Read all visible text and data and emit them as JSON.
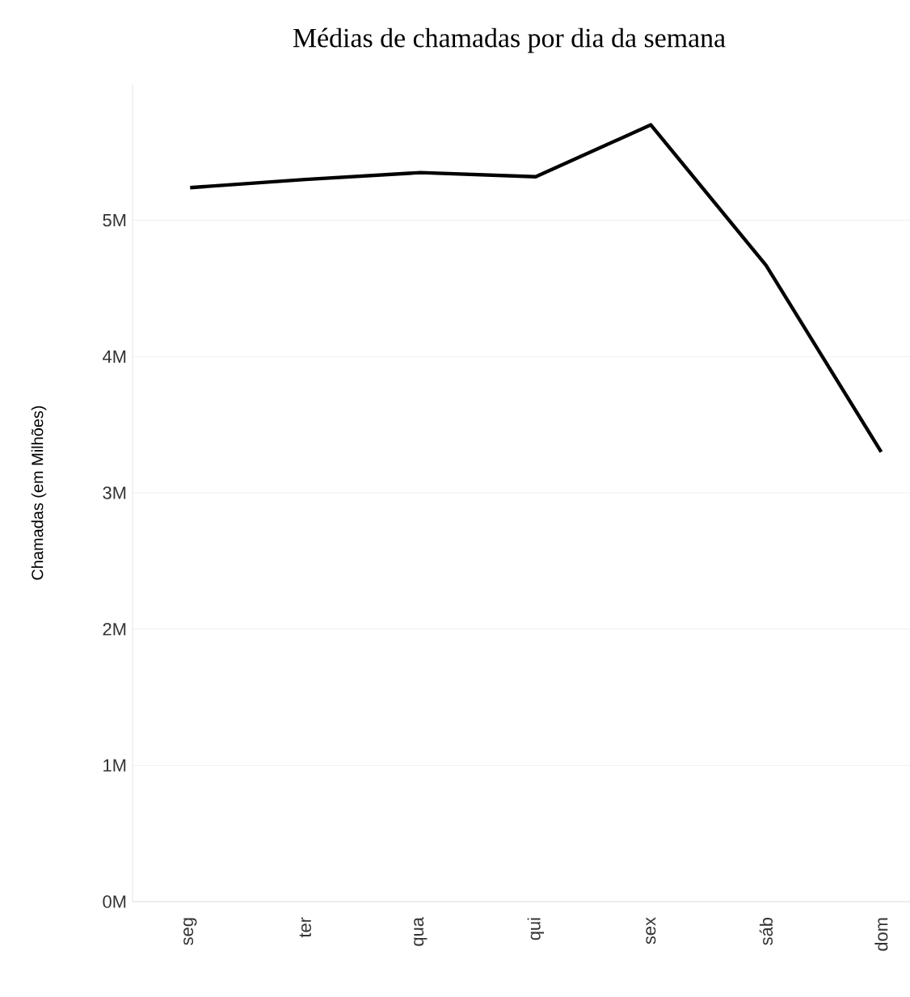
{
  "chart_data": {
    "type": "line",
    "title": "Médias de chamadas por dia da semana",
    "ylabel": "Chamadas (em Milhões)",
    "categories": [
      "seg",
      "ter",
      "qua",
      "qui",
      "sex",
      "sáb",
      "dom"
    ],
    "series": [
      {
        "color": "#000000",
        "values": [
          5.24,
          5.3,
          5.35,
          5.32,
          5.7,
          4.67,
          3.3
        ]
      }
    ],
    "ylim": [
      0,
      6
    ],
    "yticks": [
      {
        "value": 0,
        "label": "0M"
      },
      {
        "value": 1,
        "label": "1M"
      },
      {
        "value": 2,
        "label": "2M"
      },
      {
        "value": 3,
        "label": "3M"
      },
      {
        "value": 4,
        "label": "4M"
      },
      {
        "value": 5,
        "label": "5M"
      }
    ],
    "grid": "y",
    "marker": "none",
    "line_style": "solid"
  }
}
